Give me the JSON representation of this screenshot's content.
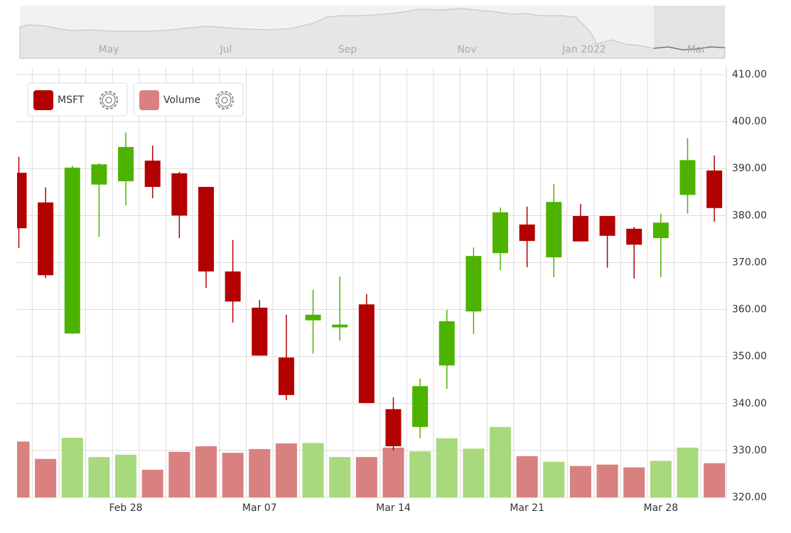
{
  "chart_data": {
    "type": "candlestick",
    "navigator_labels": [
      "May",
      "Jul",
      "Sep",
      "Nov",
      "Jan 2022",
      "Mar"
    ],
    "categories": [
      null,
      null,
      null,
      null,
      "Feb 28",
      null,
      null,
      null,
      null,
      "Mar 07",
      null,
      null,
      null,
      null,
      "Mar 14",
      null,
      null,
      null,
      null,
      "Mar 21",
      null,
      null,
      null,
      null,
      "Mar 28",
      null,
      null
    ],
    "series": [
      {
        "name": "MSFT",
        "color": "#b30000",
        "up_color": "#4db300",
        "down_color": "#b30000",
        "open": [
          389.1,
          382.8,
          354.9,
          386.6,
          387.3,
          391.7,
          389.0,
          386.1,
          368.1,
          360.4,
          349.8,
          357.7,
          356.2,
          361.1,
          338.8,
          335.0,
          348.1,
          359.6,
          372.0,
          378.1,
          371.1,
          379.9,
          379.9,
          377.2,
          375.2,
          384.4,
          389.6
        ],
        "high": [
          392.5,
          386.0,
          390.6,
          391.2,
          397.7,
          394.9,
          389.3,
          386.1,
          374.8,
          362.0,
          358.9,
          364.2,
          367.0,
          363.3,
          341.3,
          345.3,
          359.9,
          373.2,
          381.7,
          381.9,
          386.7,
          382.5,
          379.9,
          377.6,
          380.4,
          396.5,
          392.8
        ],
        "low": [
          373.1,
          366.7,
          354.8,
          375.5,
          382.2,
          383.7,
          375.2,
          364.6,
          357.2,
          350.2,
          340.7,
          350.6,
          353.4,
          340.1,
          330.0,
          332.6,
          343.1,
          354.8,
          368.4,
          369.0,
          366.9,
          374.5,
          368.9,
          366.6,
          366.9,
          380.4,
          378.7
        ],
        "close": [
          377.3,
          367.3,
          390.2,
          390.9,
          394.6,
          386.1,
          380.0,
          368.1,
          361.7,
          350.2,
          341.8,
          358.9,
          356.8,
          340.1,
          330.9,
          343.7,
          357.5,
          371.4,
          380.7,
          374.6,
          382.9,
          374.5,
          375.7,
          373.8,
          378.5,
          391.8,
          381.6
        ]
      },
      {
        "name": "Volume",
        "color": "#d98080",
        "up_color": "#a8d97c",
        "down_color": "#d98080",
        "values": [
          331.9,
          328.2,
          332.7,
          328.6,
          329.1,
          325.9,
          329.7,
          330.9,
          329.5,
          330.3,
          331.5,
          331.6,
          328.6,
          328.6,
          330.6,
          329.8,
          332.6,
          330.4,
          335.0,
          328.8,
          327.6,
          326.7,
          327.0,
          326.4,
          327.8,
          330.6,
          327.3
        ]
      }
    ],
    "ylim": [
      320,
      410
    ],
    "yticks": [
      {
        "value": 320,
        "label": "320.00"
      },
      {
        "value": 330,
        "label": "330.00"
      },
      {
        "value": 340,
        "label": "340.00"
      },
      {
        "value": 350,
        "label": "350.00"
      },
      {
        "value": 360,
        "label": "360.00"
      },
      {
        "value": 370,
        "label": "370.00"
      },
      {
        "value": 380,
        "label": "380.00"
      },
      {
        "value": 390,
        "label": "390.00"
      },
      {
        "value": 400,
        "label": "400.00"
      },
      {
        "value": 410,
        "label": "410.00"
      }
    ],
    "grid": true
  }
}
